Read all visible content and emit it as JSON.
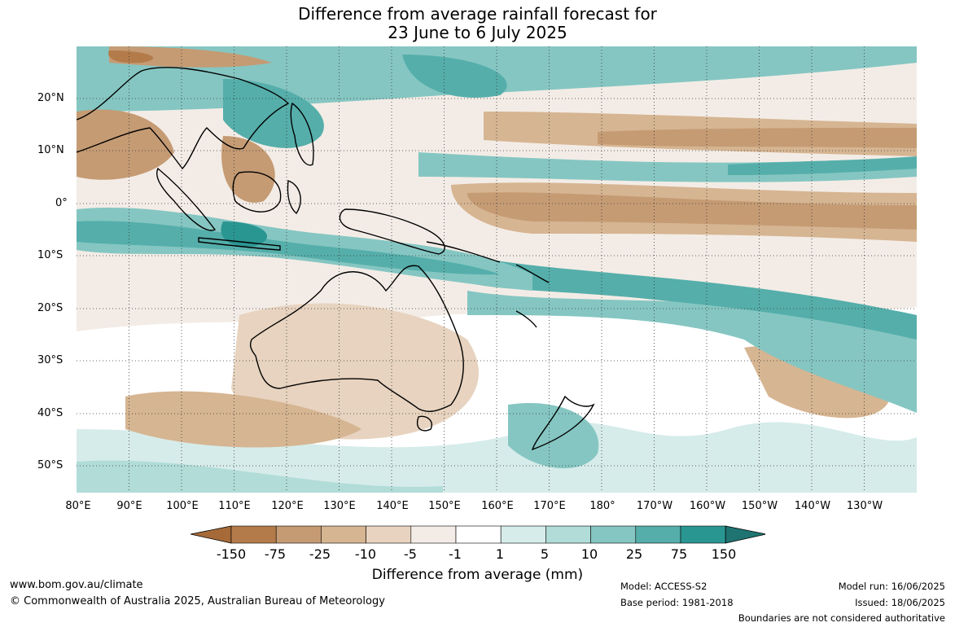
{
  "title": {
    "line1": "Difference from average rainfall forecast for",
    "line2": "23 June to 6 July 2025"
  },
  "map": {
    "lat_labels": [
      "20°N",
      "10°N",
      "0°",
      "10°S",
      "20°S",
      "30°S",
      "40°S",
      "50°S"
    ],
    "lon_labels": [
      "80°E",
      "90°E",
      "100°E",
      "110°E",
      "120°E",
      "130°E",
      "140°E",
      "150°E",
      "160°E",
      "170°E",
      "180°",
      "170°W",
      "160°W",
      "150°W",
      "140°W",
      "130°W"
    ],
    "lat_range": [
      -55,
      30
    ],
    "lon_range": [
      80,
      240
    ],
    "grid": "dotted"
  },
  "colorbar": {
    "title": "Difference from average (mm)",
    "labels": [
      "-150",
      "-75",
      "-25",
      "-10",
      "-5",
      "-1",
      "1",
      "5",
      "10",
      "25",
      "75",
      "150"
    ],
    "colors": [
      "#a66a39",
      "#b47b4a",
      "#c59b74",
      "#d6b592",
      "#e7d3bf",
      "#f3ece6",
      "#ffffff",
      "#d6ecea",
      "#b1dcd8",
      "#85c6c2",
      "#55aeaa",
      "#2a9692",
      "#1f7471"
    ]
  },
  "footer": {
    "website": "www.bom.gov.au/climate",
    "copyright": "© Commonwealth of Australia 2025, Australian Bureau of Meteorology",
    "model": "Model: ACCESS-S2",
    "base_period": "Base period: 1981-2018",
    "model_run": "Model run: 16/06/2025",
    "issued": "Issued: 18/06/2025",
    "disclaimer": "Boundaries are not considered authoritative"
  }
}
